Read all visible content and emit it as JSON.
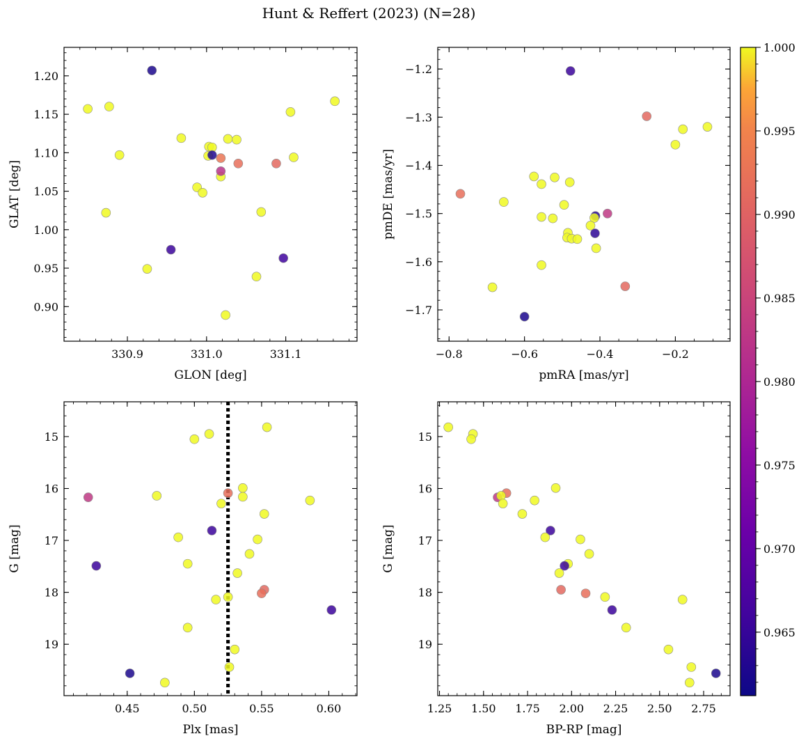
{
  "figure": {
    "title": "Hunt & Reffert (2023) (N=28)"
  },
  "colorbar": {
    "min": 0.9612,
    "max": 1.0,
    "ticks": [
      0.965,
      0.97,
      0.975,
      0.98,
      0.985,
      0.99,
      0.995,
      1.0
    ],
    "tick_labels": [
      "0.965",
      "0.970",
      "0.975",
      "0.980",
      "0.985",
      "0.990",
      "0.995",
      "1.000"
    ],
    "colormap": "plasma"
  },
  "chart_data": [
    {
      "type": "scatter",
      "name": "sky",
      "xlabel": "GLON [deg]",
      "ylabel": "GLAT [deg]",
      "xlim": [
        330.82,
        331.19
      ],
      "ylim": [
        0.855,
        1.237
      ],
      "yinvert": false,
      "xticks": [
        330.9,
        331.0,
        331.1
      ],
      "xtick_labels": [
        "330.9",
        "331.0",
        "331.1"
      ],
      "yticks": [
        0.9,
        0.95,
        1.0,
        1.05,
        1.1,
        1.15,
        1.2
      ],
      "ytick_labels": [
        "0.90",
        "0.95",
        "1.00",
        "1.05",
        "1.10",
        "1.15",
        "1.20"
      ],
      "x_minor": 0.02,
      "y_minor": 0.01,
      "points": [
        {
          "x": 330.85,
          "y": 1.157,
          "c": 1.0
        },
        {
          "x": 330.877,
          "y": 1.16,
          "c": 1.0
        },
        {
          "x": 330.89,
          "y": 1.097,
          "c": 1.0
        },
        {
          "x": 330.873,
          "y": 1.022,
          "c": 1.0
        },
        {
          "x": 330.925,
          "y": 0.949,
          "c": 1.0
        },
        {
          "x": 330.968,
          "y": 1.119,
          "c": 1.0
        },
        {
          "x": 330.988,
          "y": 1.055,
          "c": 1.0
        },
        {
          "x": 330.995,
          "y": 1.048,
          "c": 1.0
        },
        {
          "x": 331.003,
          "y": 1.108,
          "c": 1.0
        },
        {
          "x": 331.007,
          "y": 1.107,
          "c": 1.0
        },
        {
          "x": 331.002,
          "y": 1.096,
          "c": 1.0
        },
        {
          "x": 331.018,
          "y": 1.069,
          "c": 1.0
        },
        {
          "x": 331.027,
          "y": 1.118,
          "c": 1.0
        },
        {
          "x": 331.038,
          "y": 1.117,
          "c": 1.0
        },
        {
          "x": 331.024,
          "y": 0.889,
          "c": 1.0
        },
        {
          "x": 331.063,
          "y": 0.939,
          "c": 1.0
        },
        {
          "x": 331.069,
          "y": 1.023,
          "c": 1.0
        },
        {
          "x": 331.106,
          "y": 1.153,
          "c": 1.0
        },
        {
          "x": 331.11,
          "y": 1.094,
          "c": 1.0
        },
        {
          "x": 331.162,
          "y": 1.167,
          "c": 1.0
        },
        {
          "x": 331.04,
          "y": 1.086,
          "c": 0.992
        },
        {
          "x": 331.088,
          "y": 1.086,
          "c": 0.991
        },
        {
          "x": 331.018,
          "y": 1.093,
          "c": 0.993
        },
        {
          "x": 331.018,
          "y": 1.076,
          "c": 0.982
        },
        {
          "x": 330.931,
          "y": 1.207,
          "c": 0.9625
        },
        {
          "x": 330.955,
          "y": 0.974,
          "c": 0.9655
        },
        {
          "x": 331.007,
          "y": 1.097,
          "c": 0.963
        },
        {
          "x": 331.097,
          "y": 0.963,
          "c": 0.966
        }
      ]
    },
    {
      "type": "scatter",
      "name": "proper-motion",
      "xlabel": "pmRA [mas/yr]",
      "ylabel": "pmDE [mas/yr]",
      "xlim": [
        -0.83,
        -0.055
      ],
      "ylim": [
        -1.765,
        -1.155
      ],
      "yinvert": false,
      "xticks": [
        -0.8,
        -0.6,
        -0.4,
        -0.2
      ],
      "xtick_labels": [
        "−0.8",
        "−0.6",
        "−0.4",
        "−0.2"
      ],
      "yticks": [
        -1.7,
        -1.6,
        -1.5,
        -1.4,
        -1.3,
        -1.2
      ],
      "ytick_labels": [
        "−1.7",
        "−1.6",
        "−1.5",
        "−1.4",
        "−1.3",
        "−1.2"
      ],
      "x_minor": 0.05,
      "y_minor": 0.02,
      "points": [
        {
          "x": -0.478,
          "y": -1.204,
          "c": 0.9655
        },
        {
          "x": -0.276,
          "y": -1.298,
          "c": 0.991
        },
        {
          "x": -0.18,
          "y": -1.325,
          "c": 1.0
        },
        {
          "x": -0.115,
          "y": -1.32,
          "c": 1.0
        },
        {
          "x": -0.2,
          "y": -1.357,
          "c": 1.0
        },
        {
          "x": -0.575,
          "y": -1.423,
          "c": 1.0
        },
        {
          "x": -0.555,
          "y": -1.439,
          "c": 1.0
        },
        {
          "x": -0.52,
          "y": -1.425,
          "c": 1.0
        },
        {
          "x": -0.48,
          "y": -1.435,
          "c": 1.0
        },
        {
          "x": -0.77,
          "y": -1.459,
          "c": 0.992
        },
        {
          "x": -0.655,
          "y": -1.476,
          "c": 1.0
        },
        {
          "x": -0.495,
          "y": -1.482,
          "c": 1.0
        },
        {
          "x": -0.555,
          "y": -1.507,
          "c": 1.0
        },
        {
          "x": -0.525,
          "y": -1.51,
          "c": 1.0
        },
        {
          "x": -0.412,
          "y": -1.505,
          "c": 0.9635
        },
        {
          "x": -0.415,
          "y": -1.509,
          "c": 1.0
        },
        {
          "x": -0.38,
          "y": -1.5,
          "c": 0.983
        },
        {
          "x": -0.425,
          "y": -1.525,
          "c": 1.0
        },
        {
          "x": -0.413,
          "y": -1.541,
          "c": 0.964
        },
        {
          "x": -0.485,
          "y": -1.54,
          "c": 1.0
        },
        {
          "x": -0.487,
          "y": -1.55,
          "c": 1.0
        },
        {
          "x": -0.475,
          "y": -1.552,
          "c": 1.0
        },
        {
          "x": -0.46,
          "y": -1.553,
          "c": 1.0
        },
        {
          "x": -0.41,
          "y": -1.572,
          "c": 1.0
        },
        {
          "x": -0.555,
          "y": -1.607,
          "c": 1.0
        },
        {
          "x": -0.685,
          "y": -1.653,
          "c": 1.0
        },
        {
          "x": -0.333,
          "y": -1.651,
          "c": 0.991
        },
        {
          "x": -0.6,
          "y": -1.714,
          "c": 0.9625
        }
      ]
    },
    {
      "type": "scatter",
      "name": "plx-mag",
      "xlabel": "Plx [mas]",
      "ylabel": "G [mag]",
      "xlim": [
        0.403,
        0.621
      ],
      "ylim": [
        14.33,
        19.99
      ],
      "yinvert": true,
      "vline": {
        "x": 0.525,
        "style": "dotted"
      },
      "xticks": [
        0.45,
        0.5,
        0.55,
        0.6
      ],
      "xtick_labels": [
        "0.45",
        "0.50",
        "0.55",
        "0.60"
      ],
      "yticks": [
        15,
        16,
        17,
        18,
        19
      ],
      "ytick_labels": [
        "15",
        "16",
        "17",
        "18",
        "19"
      ],
      "x_minor": 0.01,
      "y_minor": 0.2,
      "points": [
        {
          "x": 0.554,
          "y": 14.82,
          "c": 1.0
        },
        {
          "x": 0.511,
          "y": 14.95,
          "c": 1.0
        },
        {
          "x": 0.5,
          "y": 15.05,
          "c": 1.0
        },
        {
          "x": 0.536,
          "y": 15.99,
          "c": 1.0
        },
        {
          "x": 0.525,
          "y": 16.09,
          "c": 0.992
        },
        {
          "x": 0.421,
          "y": 16.17,
          "c": 0.983
        },
        {
          "x": 0.472,
          "y": 16.14,
          "c": 1.0
        },
        {
          "x": 0.536,
          "y": 16.16,
          "c": 1.0
        },
        {
          "x": 0.586,
          "y": 16.23,
          "c": 1.0
        },
        {
          "x": 0.52,
          "y": 16.29,
          "c": 1.0
        },
        {
          "x": 0.552,
          "y": 16.49,
          "c": 1.0
        },
        {
          "x": 0.513,
          "y": 16.81,
          "c": 0.9655
        },
        {
          "x": 0.488,
          "y": 16.94,
          "c": 1.0
        },
        {
          "x": 0.547,
          "y": 16.98,
          "c": 1.0
        },
        {
          "x": 0.541,
          "y": 17.26,
          "c": 1.0
        },
        {
          "x": 0.495,
          "y": 17.45,
          "c": 1.0
        },
        {
          "x": 0.427,
          "y": 17.49,
          "c": 0.9655
        },
        {
          "x": 0.532,
          "y": 17.63,
          "c": 1.0
        },
        {
          "x": 0.552,
          "y": 17.95,
          "c": 0.991
        },
        {
          "x": 0.55,
          "y": 18.02,
          "c": 0.992
        },
        {
          "x": 0.525,
          "y": 18.09,
          "c": 1.0
        },
        {
          "x": 0.516,
          "y": 18.14,
          "c": 1.0
        },
        {
          "x": 0.602,
          "y": 18.34,
          "c": 0.9655
        },
        {
          "x": 0.495,
          "y": 18.68,
          "c": 1.0
        },
        {
          "x": 0.53,
          "y": 19.1,
          "c": 1.0
        },
        {
          "x": 0.526,
          "y": 19.44,
          "c": 1.0
        },
        {
          "x": 0.452,
          "y": 19.56,
          "c": 0.9625
        },
        {
          "x": 0.478,
          "y": 19.74,
          "c": 1.0
        }
      ]
    },
    {
      "type": "scatter",
      "name": "cmd",
      "xlabel": "BP-RP [mag]",
      "ylabel": "G [mag]",
      "xlim": [
        1.24,
        2.9
      ],
      "ylim": [
        14.33,
        19.99
      ],
      "yinvert": true,
      "xticks": [
        1.25,
        1.5,
        1.75,
        2.0,
        2.25,
        2.5,
        2.75
      ],
      "xtick_labels": [
        "1.25",
        "1.50",
        "1.75",
        "2.00",
        "2.25",
        "2.50",
        "2.75"
      ],
      "yticks": [
        15,
        16,
        17,
        18,
        19
      ],
      "ytick_labels": [
        "15",
        "16",
        "17",
        "18",
        "19"
      ],
      "x_minor": 0.05,
      "y_minor": 0.2,
      "points": [
        {
          "x": 1.3,
          "y": 14.82,
          "c": 1.0
        },
        {
          "x": 1.44,
          "y": 14.95,
          "c": 1.0
        },
        {
          "x": 1.43,
          "y": 15.05,
          "c": 1.0
        },
        {
          "x": 1.91,
          "y": 15.99,
          "c": 1.0
        },
        {
          "x": 1.63,
          "y": 16.09,
          "c": 0.992
        },
        {
          "x": 1.58,
          "y": 16.17,
          "c": 0.983
        },
        {
          "x": 1.6,
          "y": 16.14,
          "c": 1.0
        },
        {
          "x": 1.79,
          "y": 16.23,
          "c": 1.0
        },
        {
          "x": 1.61,
          "y": 16.29,
          "c": 1.0
        },
        {
          "x": 1.72,
          "y": 16.49,
          "c": 1.0
        },
        {
          "x": 1.88,
          "y": 16.81,
          "c": 0.9655
        },
        {
          "x": 1.85,
          "y": 16.94,
          "c": 1.0
        },
        {
          "x": 2.05,
          "y": 16.98,
          "c": 1.0
        },
        {
          "x": 2.1,
          "y": 17.26,
          "c": 1.0
        },
        {
          "x": 1.98,
          "y": 17.45,
          "c": 1.0
        },
        {
          "x": 1.96,
          "y": 17.49,
          "c": 0.9655
        },
        {
          "x": 1.93,
          "y": 17.63,
          "c": 1.0
        },
        {
          "x": 1.94,
          "y": 17.95,
          "c": 0.991
        },
        {
          "x": 2.08,
          "y": 18.02,
          "c": 0.992
        },
        {
          "x": 2.19,
          "y": 18.09,
          "c": 1.0
        },
        {
          "x": 2.63,
          "y": 18.14,
          "c": 1.0
        },
        {
          "x": 2.23,
          "y": 18.34,
          "c": 0.9655
        },
        {
          "x": 2.31,
          "y": 18.68,
          "c": 1.0
        },
        {
          "x": 2.55,
          "y": 19.1,
          "c": 1.0
        },
        {
          "x": 2.68,
          "y": 19.44,
          "c": 1.0
        },
        {
          "x": 2.82,
          "y": 19.56,
          "c": 0.9625
        },
        {
          "x": 2.67,
          "y": 19.74,
          "c": 1.0
        }
      ]
    }
  ]
}
